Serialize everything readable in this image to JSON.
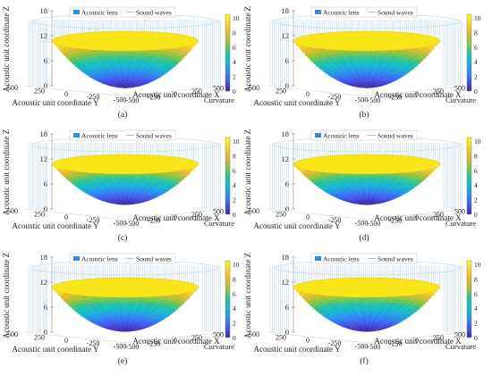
{
  "figure": {
    "panels": [
      "(a)",
      "(b)",
      "(c)",
      "(d)",
      "(e)",
      "(f)"
    ]
  },
  "chart_data": {
    "type": "surface",
    "panel_labels": [
      "(a)",
      "(b)",
      "(c)",
      "(d)",
      "(e)",
      "(f)"
    ],
    "legend": [
      "Acoustic lens",
      "Sound waves"
    ],
    "xlabel": "Acoustic unit coordinate X",
    "ylabel": "Acoustic unit coordinate Y",
    "zlabel": "Acoustic unit coordinate Z",
    "colorbar_label": "Curvature",
    "x_ticks": [
      "-500",
      "-250",
      "0",
      "250",
      "500"
    ],
    "y_ticks": [
      "500",
      "250",
      "0",
      "-250",
      "-500"
    ],
    "z_ticks": [
      "0",
      "6",
      "12",
      "18"
    ],
    "colorbar_ticks": [
      "0",
      "2",
      "4",
      "6",
      "8",
      "10"
    ],
    "xlim": [
      -500,
      500
    ],
    "ylim": [
      -500,
      500
    ],
    "zlim": [
      0,
      18
    ],
    "colorbar_range": [
      0,
      10.5
    ],
    "colormap": [
      "#3e26a8",
      "#4257f0",
      "#2a8ff0",
      "#16b7d1",
      "#23c49c",
      "#8fc63a",
      "#e1b82e",
      "#f7d520",
      "#f9fb0e"
    ],
    "lens_outline_color": "#bde0f7",
    "wave_color": "#a9c9ef",
    "surfaces": [
      {
        "panel": "(a)",
        "bowl_depth": "deep"
      },
      {
        "panel": "(b)",
        "bowl_depth": "deep"
      },
      {
        "panel": "(c)",
        "bowl_depth": "shallow"
      },
      {
        "panel": "(d)",
        "bowl_depth": "shallow"
      },
      {
        "panel": "(e)",
        "bowl_depth": "medium"
      },
      {
        "panel": "(f)",
        "bowl_depth": "medium"
      }
    ]
  }
}
